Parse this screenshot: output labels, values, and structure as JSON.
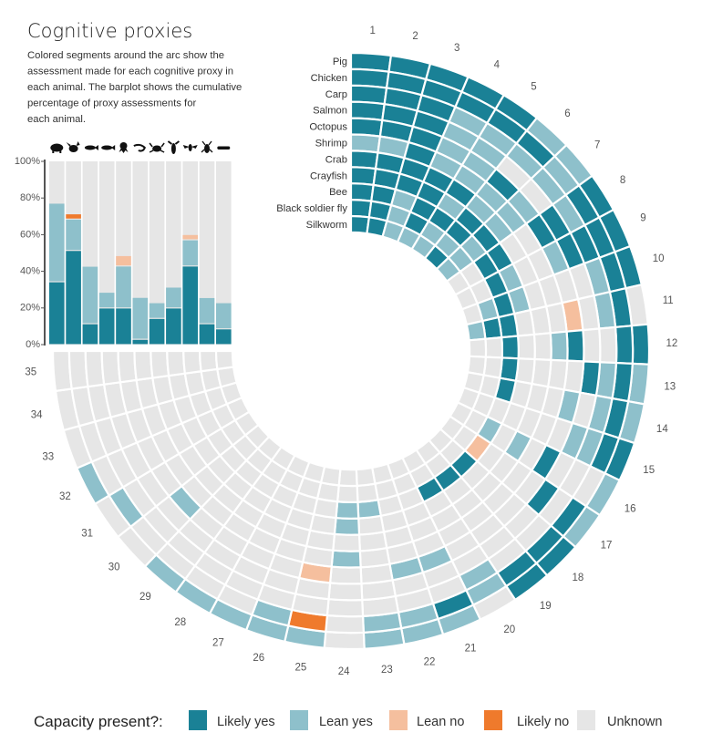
{
  "title": "Cognitive proxies",
  "description_lines": [
    "Colored segments around the arc show the",
    "assessment made for each cognitive proxy in",
    "each animal. The barplot shows the cumulative",
    "percentage of proxy assessments for",
    "each animal."
  ],
  "legend": {
    "title": "Capacity present?:",
    "items": [
      {
        "code": "Y",
        "label": "Likely yes",
        "color": "#1a8196"
      },
      {
        "code": "y",
        "label": "Lean yes",
        "color": "#8ec0cb"
      },
      {
        "code": "n",
        "label": "Lean no",
        "color": "#f5bf9e"
      },
      {
        "code": "N",
        "label": "Likely no",
        "color": "#ef7a2c"
      },
      {
        "code": "U",
        "label": "Unknown",
        "color": "#e6e6e6"
      }
    ]
  },
  "chart_data": [
    {
      "type": "heatmap",
      "layout": "circular",
      "ring_order": "outer-to-inner",
      "proxies": [
        "1",
        "2",
        "3",
        "4",
        "5",
        "6",
        "7",
        "8",
        "9",
        "10",
        "11",
        "12",
        "13",
        "14",
        "15",
        "16",
        "17",
        "18",
        "19",
        "20",
        "21",
        "22",
        "23",
        "24",
        "25",
        "26",
        "27",
        "28",
        "29",
        "30",
        "31",
        "32",
        "33",
        "34",
        "35"
      ],
      "rows": [
        {
          "animal": "Pig",
          "icon": "pig-icon",
          "values": [
            "Y",
            "Y",
            "Y",
            "Y",
            "Y",
            "y",
            "y",
            "Y",
            "Y",
            "Y",
            "U",
            "Y",
            "y",
            "y",
            "Y",
            "y",
            "y",
            "Y",
            "Y",
            "U",
            "y",
            "y",
            "y",
            "U",
            "y",
            "y",
            "y",
            "y",
            "y",
            "U",
            "U",
            "y",
            "U",
            "U",
            "U"
          ]
        },
        {
          "animal": "Chicken",
          "icon": "chicken-icon",
          "values": [
            "Y",
            "Y",
            "Y",
            "Y",
            "Y",
            "Y",
            "y",
            "Y",
            "Y",
            "Y",
            "Y",
            "Y",
            "Y",
            "Y",
            "Y",
            "U",
            "Y",
            "Y",
            "Y",
            "y",
            "Y",
            "y",
            "y",
            "U",
            "N",
            "y",
            "U",
            "U",
            "U",
            "U",
            "y",
            "U",
            "U",
            "U",
            "U"
          ]
        },
        {
          "animal": "Carp",
          "icon": "carp-icon",
          "values": [
            "Y",
            "Y",
            "Y",
            "y",
            "y",
            "y",
            "y",
            "y",
            "Y",
            "y",
            "y",
            "U",
            "y",
            "y",
            "y",
            "U",
            "U",
            "U",
            "U",
            "y",
            "U",
            "U",
            "U",
            "U",
            "U",
            "U",
            "U",
            "U",
            "U",
            "U",
            "U",
            "U",
            "U",
            "U",
            "U"
          ]
        },
        {
          "animal": "Salmon",
          "icon": "salmon-icon",
          "values": [
            "Y",
            "Y",
            "Y",
            "y",
            "y",
            "U",
            "U",
            "Y",
            "Y",
            "U",
            "U",
            "U",
            "Y",
            "U",
            "y",
            "U",
            "Y",
            "U",
            "U",
            "U",
            "U",
            "U",
            "U",
            "U",
            "U",
            "U",
            "U",
            "U",
            "U",
            "U",
            "U",
            "U",
            "U",
            "U",
            "U"
          ]
        },
        {
          "animal": "Octopus",
          "icon": "octopus-icon",
          "values": [
            "Y",
            "Y",
            "Y",
            "y",
            "y",
            "Y",
            "y",
            "Y",
            "y",
            "U",
            "n",
            "Y",
            "U",
            "y",
            "U",
            "Y",
            "U",
            "U",
            "U",
            "U",
            "y",
            "y",
            "U",
            "U",
            "n",
            "U",
            "U",
            "U",
            "U",
            "y",
            "U",
            "U",
            "U",
            "U",
            "U"
          ]
        },
        {
          "animal": "Shrimp",
          "icon": "shrimp-icon",
          "values": [
            "y",
            "y",
            "Y",
            "y",
            "y",
            "y",
            "y",
            "U",
            "U",
            "U",
            "U",
            "y",
            "U",
            "U",
            "U",
            "U",
            "U",
            "U",
            "U",
            "U",
            "U",
            "U",
            "U",
            "y",
            "U",
            "U",
            "U",
            "U",
            "U",
            "U",
            "U",
            "U",
            "U",
            "U",
            "U"
          ]
        },
        {
          "animal": "Crab",
          "icon": "crab-icon",
          "values": [
            "Y",
            "Y",
            "Y",
            "Y",
            "Y",
            "y",
            "y",
            "U",
            "U",
            "U",
            "U",
            "U",
            "U",
            "U",
            "U",
            "y",
            "U",
            "U",
            "U",
            "U",
            "U",
            "U",
            "U",
            "U",
            "U",
            "U",
            "U",
            "U",
            "U",
            "U",
            "U",
            "U",
            "U",
            "U",
            "U"
          ]
        },
        {
          "animal": "Crayfish",
          "icon": "crayfish-icon",
          "values": [
            "Y",
            "Y",
            "Y",
            "Y",
            "y",
            "Y",
            "Y",
            "Y",
            "y",
            "y",
            "U",
            "U",
            "U",
            "U",
            "U",
            "U",
            "U",
            "U",
            "U",
            "U",
            "U",
            "U",
            "U",
            "y",
            "U",
            "U",
            "U",
            "U",
            "U",
            "U",
            "U",
            "U",
            "U",
            "U",
            "U"
          ]
        },
        {
          "animal": "Bee",
          "icon": "bee-icon",
          "values": [
            "Y",
            "Y",
            "y",
            "Y",
            "Y",
            "Y",
            "y",
            "Y",
            "Y",
            "Y",
            "Y",
            "Y",
            "Y",
            "Y",
            "U",
            "y",
            "n",
            "Y",
            "Y",
            "Y",
            "U",
            "U",
            "y",
            "y",
            "U",
            "U",
            "U",
            "U",
            "U",
            "U",
            "U",
            "U",
            "U",
            "U",
            "U"
          ]
        },
        {
          "animal": "Black soldier fly",
          "icon": "black-soldier-fly-icon",
          "values": [
            "Y",
            "Y",
            "y",
            "Y",
            "y",
            "y",
            "y",
            "U",
            "U",
            "y",
            "Y",
            "U",
            "U",
            "U",
            "U",
            "U",
            "U",
            "U",
            "U",
            "U",
            "U",
            "U",
            "U",
            "U",
            "U",
            "U",
            "U",
            "U",
            "U",
            "U",
            "U",
            "U",
            "U",
            "U",
            "U"
          ]
        },
        {
          "animal": "Silkworm",
          "icon": "silkworm-icon",
          "values": [
            "Y",
            "Y",
            "y",
            "y",
            "y",
            "Y",
            "y",
            "U",
            "U",
            "U",
            "y",
            "U",
            "U",
            "U",
            "U",
            "U",
            "U",
            "U",
            "U",
            "U",
            "U",
            "U",
            "U",
            "U",
            "U",
            "U",
            "U",
            "U",
            "U",
            "U",
            "U",
            "U",
            "U",
            "U",
            "U"
          ]
        }
      ]
    },
    {
      "type": "bar",
      "stacked": true,
      "categories": [
        "Pig",
        "Chicken",
        "Carp",
        "Salmon",
        "Octopus",
        "Shrimp",
        "Crab",
        "Crayfish",
        "Bee",
        "Black soldier fly",
        "Silkworm"
      ],
      "category_icons": [
        "pig-icon",
        "chicken-icon",
        "carp-icon",
        "salmon-icon",
        "octopus-icon",
        "shrimp-icon",
        "crab-icon",
        "crayfish-icon",
        "bee-icon",
        "black-soldier-fly-icon",
        "silkworm-icon"
      ],
      "series": [
        {
          "name": "Likely yes",
          "values": [
            34.3,
            51.4,
            11.4,
            20.0,
            20.0,
            2.9,
            14.3,
            20.0,
            42.9,
            11.4,
            8.6
          ]
        },
        {
          "name": "Lean yes",
          "values": [
            42.9,
            17.1,
            31.4,
            8.6,
            22.9,
            22.9,
            8.6,
            11.4,
            14.3,
            14.3,
            14.3
          ]
        },
        {
          "name": "Lean no",
          "values": [
            0,
            0,
            0,
            0,
            5.7,
            0,
            0,
            0,
            2.9,
            0,
            0
          ]
        },
        {
          "name": "Likely no",
          "values": [
            0,
            2.9,
            0,
            0,
            0,
            0,
            0,
            0,
            0,
            0,
            0
          ]
        }
      ],
      "ylim": [
        0,
        100
      ],
      "yticks": [
        "0%",
        "20%",
        "40%",
        "60%",
        "80%",
        "100%"
      ],
      "grid": false
    }
  ]
}
